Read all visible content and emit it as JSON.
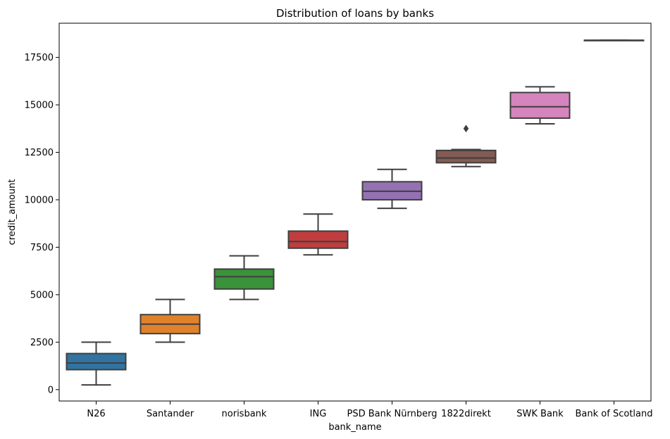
{
  "chart_data": {
    "type": "boxplot",
    "title": "Distribution of loans by banks",
    "xlabel": "bank_name",
    "ylabel": "credit_amount",
    "ylim": [
      -600,
      19300
    ],
    "yticks": [
      0,
      2500,
      5000,
      7500,
      10000,
      12500,
      15000,
      17500
    ],
    "ytick_labels": [
      "0",
      "2500",
      "5000",
      "7500",
      "10000",
      "12500",
      "15000",
      "17500"
    ],
    "grid": false,
    "categories": [
      "N26",
      "Santander",
      "norisbank",
      "ING",
      "PSD Bank Nürnberg",
      "1822direkt",
      "SWK Bank",
      "Bank of Scotland"
    ],
    "boxes": [
      {
        "bank": "N26",
        "min": 250,
        "q1": 1050,
        "median": 1400,
        "q3": 1900,
        "max": 2500,
        "outliers": [],
        "color": "#3274a1"
      },
      {
        "bank": "Santander",
        "min": 2500,
        "q1": 2950,
        "median": 3450,
        "q3": 3950,
        "max": 4750,
        "outliers": [],
        "color": "#e1812c"
      },
      {
        "bank": "norisbank",
        "min": 4750,
        "q1": 5300,
        "median": 5950,
        "q3": 6350,
        "max": 7050,
        "outliers": [],
        "color": "#3a923a"
      },
      {
        "bank": "ING",
        "min": 7100,
        "q1": 7450,
        "median": 7800,
        "q3": 8350,
        "max": 9250,
        "outliers": [],
        "color": "#c03d3e"
      },
      {
        "bank": "PSD Bank Nürnberg",
        "min": 9550,
        "q1": 10000,
        "median": 10450,
        "q3": 10950,
        "max": 11600,
        "outliers": [],
        "color": "#9372b2"
      },
      {
        "bank": "1822direkt",
        "min": 11750,
        "q1": 11950,
        "median": 12200,
        "q3": 12600,
        "max": 12650,
        "outliers": [
          13750
        ],
        "color": "#845b53"
      },
      {
        "bank": "SWK Bank",
        "min": 14000,
        "q1": 14300,
        "median": 14900,
        "q3": 15650,
        "max": 15950,
        "outliers": [],
        "color": "#d684bd"
      },
      {
        "bank": "Bank of Scotland",
        "min": 18400,
        "q1": 18400,
        "median": 18400,
        "q3": 18400,
        "max": 18400,
        "outliers": [],
        "color": "#7f7f7f"
      }
    ]
  }
}
